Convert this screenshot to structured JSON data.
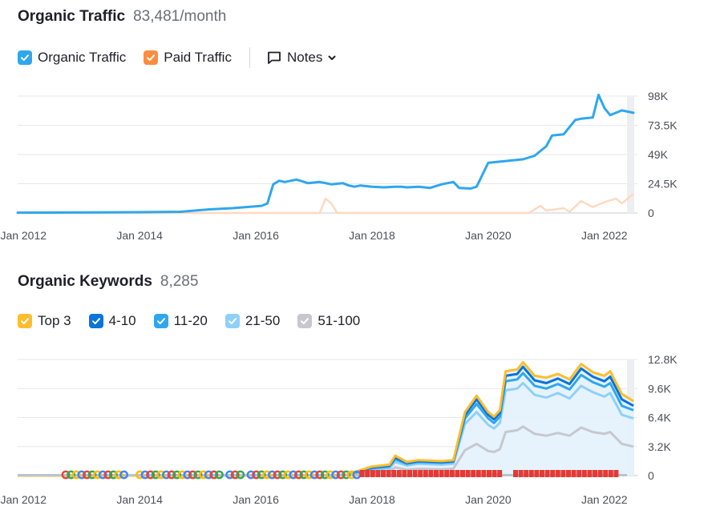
{
  "traffic": {
    "title": "Organic Traffic",
    "value": "83,481/month",
    "legend": [
      {
        "label": "Organic Traffic",
        "color": "#2fa7ed"
      },
      {
        "label": "Paid Traffic",
        "color": "#ff8c40"
      }
    ],
    "notes_label": "Notes"
  },
  "keywords": {
    "title": "Organic Keywords",
    "value": "8,285",
    "legend": [
      {
        "label": "Top 3",
        "color": "#ffbd2e"
      },
      {
        "label": "4-10",
        "color": "#0a74d9"
      },
      {
        "label": "11-20",
        "color": "#2fa7ed"
      },
      {
        "label": "21-50",
        "color": "#8fd0f9"
      },
      {
        "label": "51-100",
        "color": "#c6c8cf"
      }
    ]
  },
  "chart_data": [
    {
      "type": "line",
      "x_ticks": [
        "Jan 2012",
        "Jan 2014",
        "Jan 2016",
        "Jan 2018",
        "Jan 2020",
        "Jan 2022"
      ],
      "y_ticks": [
        "98K",
        "73.5K",
        "49K",
        "24.5K",
        "0"
      ],
      "ylim": [
        0,
        98000
      ],
      "grid": true,
      "series": [
        {
          "name": "Organic Traffic",
          "color": "#2fa7ed",
          "x": [
            2011.9,
            2013,
            2014,
            2014.7,
            2015.2,
            2015.6,
            2016.1,
            2016.2,
            2016.3,
            2016.4,
            2016.5,
            2016.7,
            2016.9,
            2017.1,
            2017.3,
            2017.5,
            2017.6,
            2017.7,
            2017.8,
            2018,
            2018.2,
            2018.4,
            2018.5,
            2018.6,
            2018.8,
            2019,
            2019.2,
            2019.4,
            2019.5,
            2019.7,
            2019.8,
            2020,
            2020.2,
            2020.4,
            2020.6,
            2020.8,
            2021,
            2021.1,
            2021.3,
            2021.4,
            2021.5,
            2021.6,
            2021.8,
            2021.9,
            2022,
            2022.1,
            2022.3,
            2022.5
          ],
          "values": [
            300,
            400,
            700,
            1000,
            3000,
            4000,
            6000,
            8000,
            24000,
            27000,
            26000,
            28000,
            25000,
            26000,
            24000,
            25000,
            23000,
            22000,
            23000,
            22000,
            21500,
            22000,
            22000,
            21500,
            22000,
            21000,
            24000,
            26000,
            21000,
            20500,
            22000,
            42000,
            43000,
            44000,
            45000,
            48000,
            56000,
            65000,
            66000,
            72000,
            78000,
            79000,
            80000,
            99000,
            88000,
            82000,
            86000,
            84000
          ]
        },
        {
          "name": "Paid Traffic",
          "color": "#ff8c40",
          "x": [
            2011.9,
            2017.1,
            2017.2,
            2017.3,
            2017.4,
            2020.7,
            2020.9,
            2021,
            2021.3,
            2021.4,
            2021.6,
            2021.8,
            2022,
            2022.2,
            2022.3,
            2022.5
          ],
          "values": [
            0,
            0,
            12000,
            8000,
            0,
            0,
            6000,
            2000,
            4000,
            1000,
            10000,
            5000,
            9000,
            12000,
            8000,
            16000
          ]
        }
      ]
    },
    {
      "type": "area",
      "x_ticks": [
        "Jan 2012",
        "Jan 2014",
        "Jan 2016",
        "Jan 2018",
        "Jan 2020",
        "Jan 2022"
      ],
      "y_ticks": [
        "12.8K",
        "9.6K",
        "6.4K",
        "3.2K",
        "0"
      ],
      "ylim": [
        0,
        12800
      ],
      "grid": true,
      "x": [
        2011.9,
        2017.2,
        2017.6,
        2017.7,
        2017.8,
        2018,
        2018.3,
        2018.4,
        2018.6,
        2018.8,
        2019.2,
        2019.4,
        2019.6,
        2019.8,
        2020,
        2020.1,
        2020.2,
        2020.3,
        2020.5,
        2020.6,
        2020.8,
        2021,
        2021.2,
        2021.4,
        2021.6,
        2021.8,
        2022,
        2022.1,
        2022.3,
        2022.5
      ],
      "series": [
        {
          "name": "Top 3",
          "color": "#ffbd2e",
          "values": [
            0,
            0,
            100,
            400,
            600,
            1000,
            1200,
            2200,
            1500,
            1700,
            1600,
            1700,
            7000,
            8800,
            7000,
            6500,
            7200,
            11500,
            11700,
            12500,
            11000,
            10800,
            11200,
            10600,
            12300,
            11400,
            11000,
            11500,
            9000,
            8200
          ]
        },
        {
          "name": "4-10",
          "color": "#0a74d9",
          "values": [
            0,
            0,
            100,
            350,
            550,
            900,
            1100,
            2000,
            1400,
            1600,
            1500,
            1600,
            6700,
            8400,
            6700,
            6200,
            6900,
            11000,
            11200,
            12000,
            10500,
            10200,
            10700,
            10100,
            11800,
            10900,
            10400,
            10900,
            8400,
            7700
          ]
        },
        {
          "name": "11-20",
          "color": "#2fa7ed",
          "values": [
            0,
            0,
            90,
            300,
            500,
            800,
            1000,
            1800,
            1300,
            1500,
            1400,
            1500,
            6300,
            7900,
            6300,
            5800,
            6500,
            10400,
            10600,
            11300,
            9900,
            9600,
            10100,
            9500,
            11100,
            10300,
            9800,
            10200,
            7700,
            7200
          ]
        },
        {
          "name": "21-50",
          "color": "#8fd0f9",
          "values": [
            0,
            0,
            70,
            250,
            400,
            650,
            800,
            1500,
            1100,
            1300,
            1200,
            1300,
            5700,
            7000,
            5600,
            5200,
            5800,
            9400,
            9600,
            10200,
            8900,
            8600,
            9100,
            8500,
            9900,
            9200,
            8700,
            9100,
            6700,
            6300
          ]
        },
        {
          "name": "51-100",
          "color": "#c6c8cf",
          "values": [
            0,
            0,
            40,
            150,
            250,
            400,
            500,
            900,
            650,
            750,
            700,
            750,
            2800,
            3500,
            2700,
            2600,
            2900,
            4800,
            5000,
            5400,
            4600,
            4400,
            4700,
            4400,
            5300,
            4800,
            4600,
            4800,
            3500,
            3200
          ]
        }
      ]
    }
  ]
}
